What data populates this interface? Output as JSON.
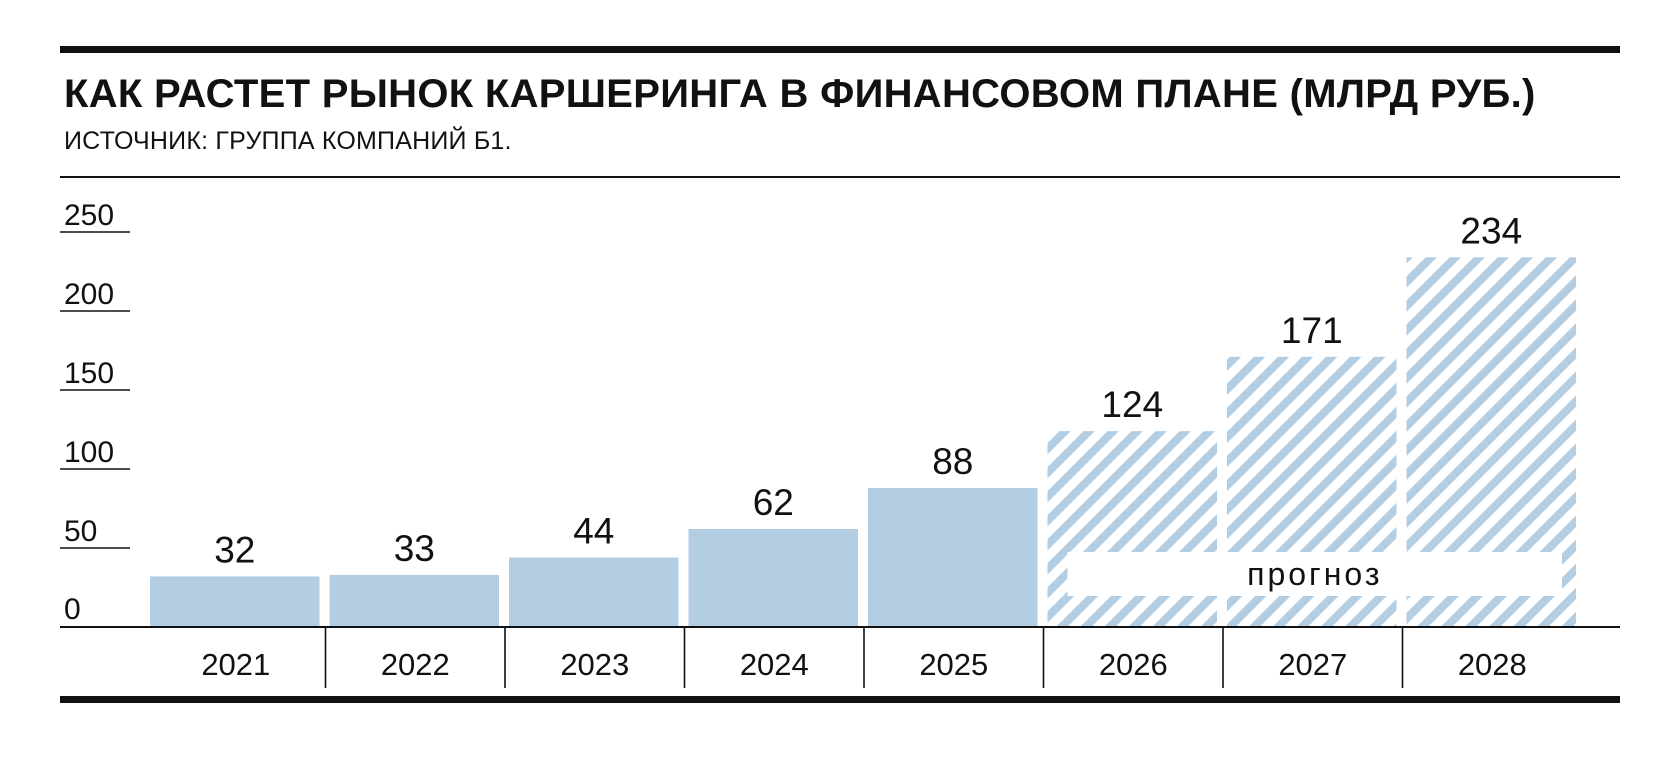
{
  "header": {
    "title": "КАК РАСТЕТ РЫНОК КАРШЕРИНГА В ФИНАНСОВОМ ПЛАНЕ (МЛРД РУБ.)",
    "subtitle": "ИСТОЧНИК: ГРУППА КОМПАНИЙ Б1."
  },
  "colors": {
    "bar": "#b3cde3",
    "text": "#111111",
    "rule": "#111111"
  },
  "chart_data": {
    "type": "bar",
    "title": "КАК РАСТЕТ РЫНОК КАРШЕРИНГА В ФИНАНСОВОМ ПЛАНЕ (МЛРД РУБ.)",
    "xlabel": "",
    "ylabel": "",
    "categories": [
      "2021",
      "2022",
      "2023",
      "2024",
      "2025",
      "2026",
      "2027",
      "2028"
    ],
    "values": [
      32,
      33,
      44,
      62,
      88,
      124,
      171,
      234
    ],
    "forecast": [
      false,
      false,
      false,
      false,
      false,
      true,
      true,
      true
    ],
    "forecast_label": "прогноз",
    "ylim": [
      0,
      250
    ],
    "yticks": [
      0,
      50,
      100,
      150,
      200,
      250
    ],
    "grid": false,
    "legend": "none"
  }
}
